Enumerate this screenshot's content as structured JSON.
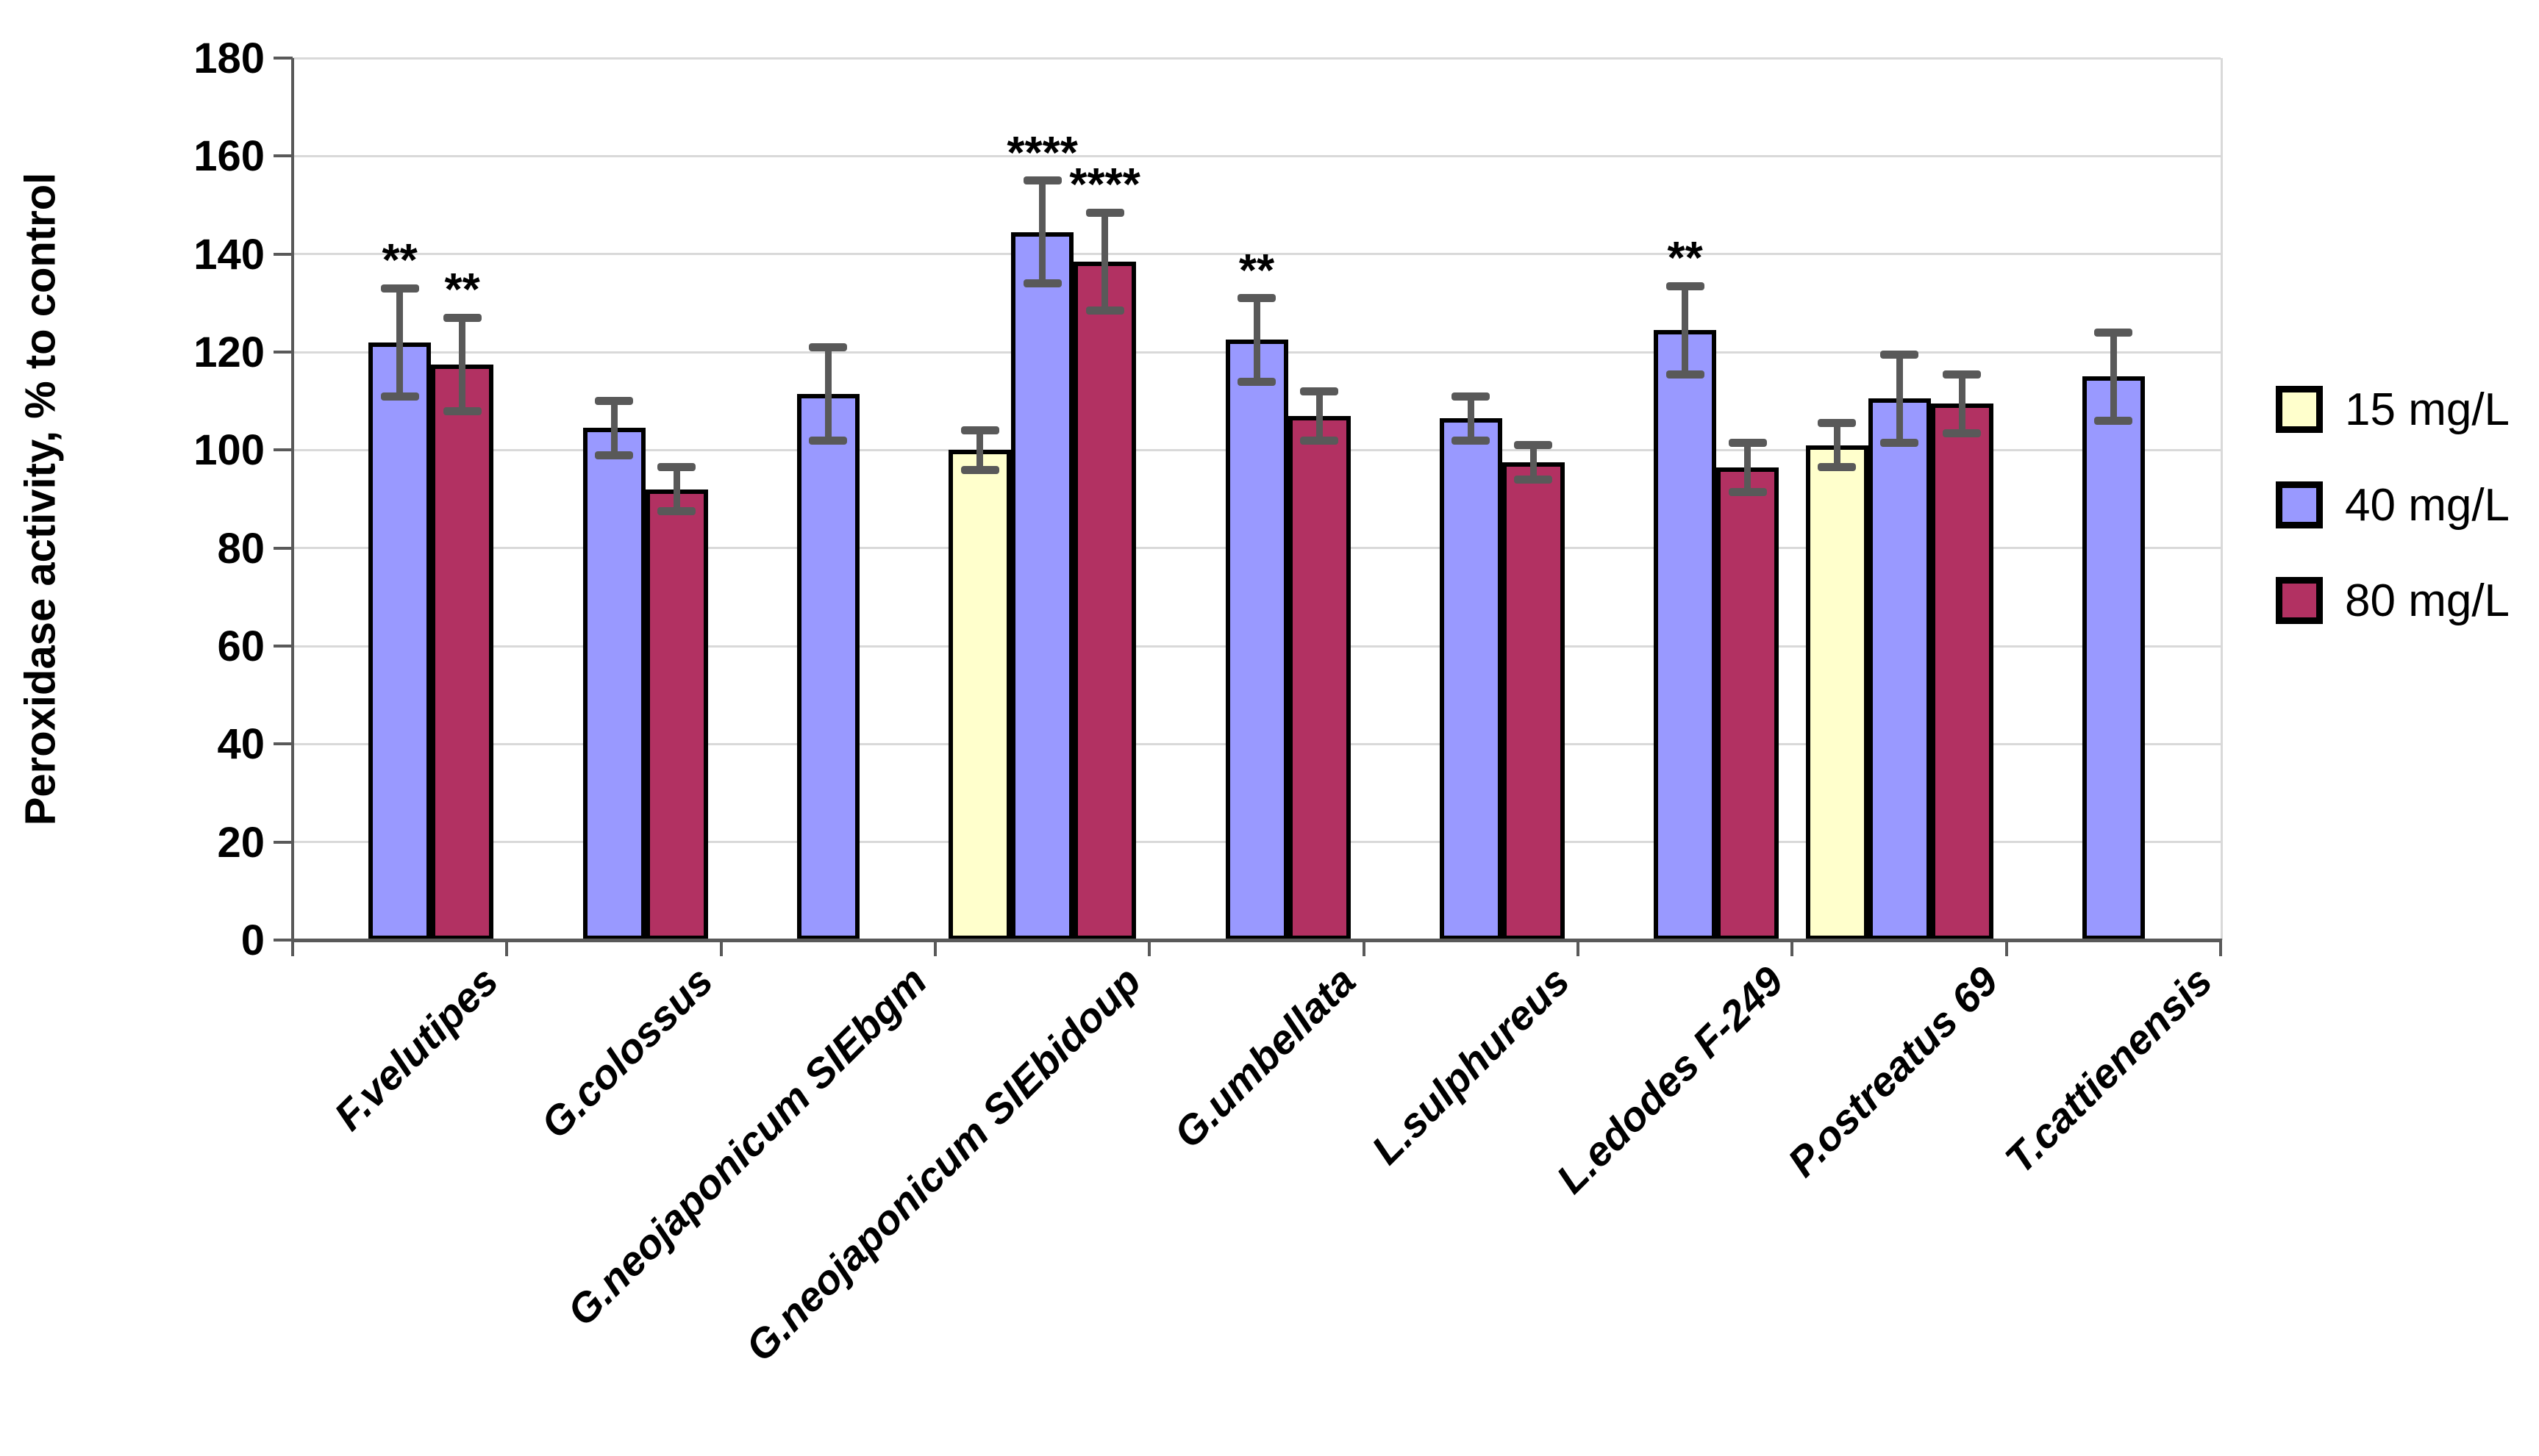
{
  "chart_data": {
    "type": "bar",
    "title": "",
    "ylabel": "Peroxidase activity, % to control",
    "xlabel": "",
    "ylim": [
      0,
      180
    ],
    "ytick_step": 20,
    "grid": "horizontal",
    "legend_position": "right",
    "categories": [
      "F.velutipes",
      "G.colossus",
      "G.neojaponicum SIEbgm",
      "G.neojaponicum SIEbidoup",
      "G.umbellata",
      "L.sulphureus",
      "L.edodes F-249",
      "P.ostreatus 69",
      "T.cattienensis"
    ],
    "series": [
      {
        "name": "15 mg/L",
        "color": "#FFFFCC",
        "values": [
          null,
          null,
          null,
          100,
          null,
          null,
          null,
          101,
          null
        ],
        "errors": [
          null,
          null,
          null,
          4,
          null,
          null,
          null,
          4.5,
          null
        ],
        "sig": [
          null,
          null,
          null,
          null,
          null,
          null,
          null,
          null,
          null
        ]
      },
      {
        "name": "40 mg/L",
        "color": "#9999FF",
        "values": [
          122,
          104.5,
          111.5,
          144.5,
          122.5,
          106.5,
          124.5,
          110.5,
          115
        ],
        "errors": [
          11,
          5.5,
          9.5,
          10.5,
          8.5,
          4.5,
          9,
          9,
          9
        ],
        "sig": [
          "**",
          null,
          null,
          "****",
          "**",
          null,
          "**",
          null,
          null
        ]
      },
      {
        "name": "80 mg/L",
        "color": "#B23162",
        "values": [
          117.5,
          92,
          null,
          138.5,
          107,
          97.5,
          96.5,
          109.5,
          null
        ],
        "errors": [
          9.5,
          4.5,
          null,
          10,
          5,
          3.5,
          5,
          6,
          null
        ],
        "sig": [
          "**",
          null,
          null,
          "****",
          null,
          null,
          null,
          null,
          null
        ]
      }
    ],
    "style": {
      "bar_border_color": "#000000",
      "error_bar_color": "#595959",
      "gridline_color": "#D9D9D9",
      "axis_color": "#595959",
      "plot_right_border_color": "#D9D9D9",
      "background": "#FFFFFF"
    }
  }
}
